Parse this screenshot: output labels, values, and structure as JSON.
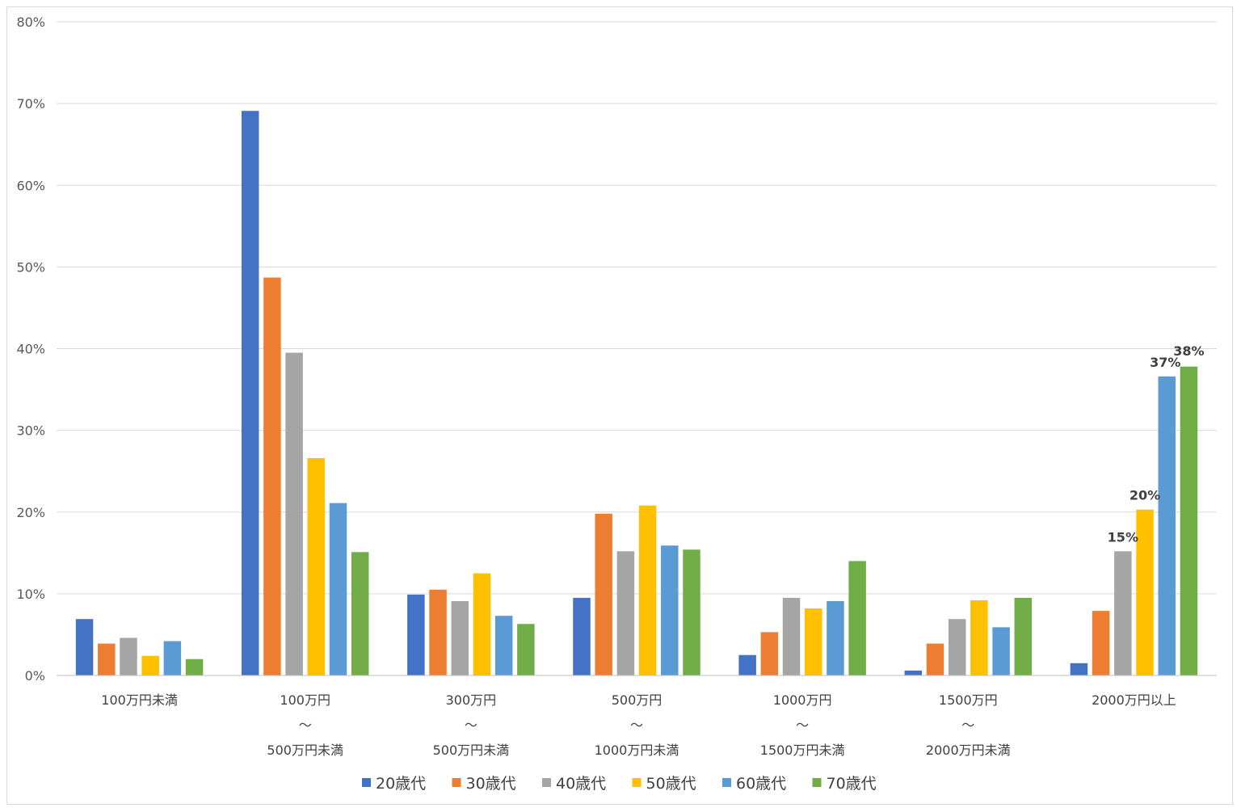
{
  "chart_data": {
    "type": "bar",
    "title": "",
    "xlabel": "",
    "ylabel": "",
    "ylim": [
      0,
      80
    ],
    "y_ticks": [
      "0%",
      "10%",
      "20%",
      "30%",
      "40%",
      "50%",
      "60%",
      "70%",
      "80%"
    ],
    "y_tick_values": [
      0,
      10,
      20,
      30,
      40,
      50,
      60,
      70,
      80
    ],
    "grid": true,
    "legend_position": "bottom",
    "categories": [
      [
        "100万円未満"
      ],
      [
        "100万円",
        "～",
        "500万円未満"
      ],
      [
        "300万円",
        "～",
        "500万円未満"
      ],
      [
        "500万円",
        "～",
        "1000万円未満"
      ],
      [
        "1000万円",
        "～",
        "1500万円未満"
      ],
      [
        "1500万円",
        "～",
        "2000万円未満"
      ],
      [
        "2000万円以上"
      ]
    ],
    "series": [
      {
        "name": "20歳代",
        "color": "#4472C4",
        "values": [
          6.9,
          69.1,
          9.9,
          9.5,
          2.5,
          0.6,
          1.5
        ]
      },
      {
        "name": "30歳代",
        "color": "#ED7D31",
        "values": [
          3.9,
          48.7,
          10.5,
          19.8,
          5.3,
          3.9,
          7.9
        ]
      },
      {
        "name": "40歳代",
        "color": "#A5A5A5",
        "values": [
          4.6,
          39.5,
          9.1,
          15.2,
          9.5,
          6.9,
          15.2
        ]
      },
      {
        "name": "50歳代",
        "color": "#FFC000",
        "values": [
          2.4,
          26.6,
          12.5,
          20.8,
          8.2,
          9.2,
          20.3
        ]
      },
      {
        "name": "60歳代",
        "color": "#5B9BD5",
        "values": [
          4.2,
          21.1,
          7.3,
          15.9,
          9.1,
          5.9,
          36.6
        ]
      },
      {
        "name": "70歳代",
        "color": "#70AD47",
        "values": [
          2.0,
          15.1,
          6.3,
          15.4,
          14.0,
          9.5,
          37.8
        ]
      }
    ],
    "data_labels": [
      {
        "category_index": 6,
        "series_index": 2,
        "text": "15%"
      },
      {
        "category_index": 6,
        "series_index": 3,
        "text": "20%"
      },
      {
        "category_index": 6,
        "series_index": 4,
        "text": "37%"
      },
      {
        "category_index": 6,
        "series_index": 5,
        "text": "38%"
      }
    ]
  }
}
